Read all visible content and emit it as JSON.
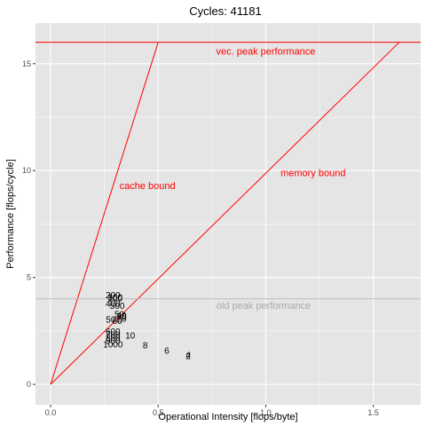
{
  "chart_data": {
    "type": "scatter",
    "title": "Cycles:  41181",
    "xlabel": "Operational Intensity [flops/byte]",
    "ylabel": "Performance [flops/cycle]",
    "xlim": [
      -0.07,
      1.72
    ],
    "ylim": [
      -0.95,
      16.9
    ],
    "x_ticks": [
      0.0,
      0.5,
      1.0,
      1.5
    ],
    "x_tick_labels": [
      "0.0",
      "0.5",
      "1.0",
      "1.5"
    ],
    "y_ticks": [
      0,
      5,
      10,
      15
    ],
    "y_tick_labels": [
      "0",
      "5",
      "10",
      "15"
    ],
    "grid": true,
    "colors": {
      "panel": "#e5e5e5",
      "grid": "#ffffff",
      "roof": "#ff0000",
      "old_peak": "#bdbdbd",
      "old_peak_text": "#a9a9a9",
      "point": "#000000"
    },
    "lines": [
      {
        "kind": "hline",
        "y": 16,
        "color": "#ff0000"
      },
      {
        "kind": "segment",
        "x": [
          0,
          0.5
        ],
        "y": [
          0,
          16
        ],
        "color": "#ff0000"
      },
      {
        "kind": "segment",
        "x": [
          0,
          1.62
        ],
        "y": [
          0,
          16
        ],
        "color": "#ff0000"
      },
      {
        "kind": "hline",
        "y": 4,
        "color": "#bdbdbd"
      }
    ],
    "annotations": [
      {
        "text": "vec. peak performance",
        "x": 1.0,
        "y": 15.6,
        "color": "#ff0000"
      },
      {
        "text": "cache bound",
        "x": 0.45,
        "y": 9.3,
        "color": "#ff0000"
      },
      {
        "text": "memory bound",
        "x": 1.22,
        "y": 9.9,
        "color": "#ff0000"
      },
      {
        "text": "old peak performance",
        "x": 0.99,
        "y": 3.7,
        "color": "#a9a9a9"
      }
    ],
    "points": [
      {
        "label": "200",
        "x": 0.29,
        "y": 4.2
      },
      {
        "label": "300",
        "x": 0.3,
        "y": 4.1
      },
      {
        "label": "100",
        "x": 0.3,
        "y": 4.05
      },
      {
        "label": "400",
        "x": 0.29,
        "y": 3.8
      },
      {
        "label": "500",
        "x": 0.31,
        "y": 3.7
      },
      {
        "label": "50",
        "x": 0.32,
        "y": 3.3
      },
      {
        "label": "40",
        "x": 0.33,
        "y": 3.25
      },
      {
        "label": "30",
        "x": 0.33,
        "y": 3.2
      },
      {
        "label": "20",
        "x": 0.33,
        "y": 3.1
      },
      {
        "label": "50",
        "x": 0.28,
        "y": 3.05
      },
      {
        "label": "60",
        "x": 0.31,
        "y": 3.0
      },
      {
        "label": "600",
        "x": 0.29,
        "y": 2.5
      },
      {
        "label": "700",
        "x": 0.29,
        "y": 2.35
      },
      {
        "label": "800",
        "x": 0.29,
        "y": 2.2
      },
      {
        "label": "900",
        "x": 0.29,
        "y": 2.05
      },
      {
        "label": "1000",
        "x": 0.29,
        "y": 1.9
      },
      {
        "label": "10",
        "x": 0.37,
        "y": 2.3
      },
      {
        "label": "8",
        "x": 0.44,
        "y": 1.85
      },
      {
        "label": "6",
        "x": 0.54,
        "y": 1.6
      },
      {
        "label": "4",
        "x": 0.64,
        "y": 1.4
      },
      {
        "label": "2",
        "x": 0.64,
        "y": 1.35
      }
    ]
  }
}
